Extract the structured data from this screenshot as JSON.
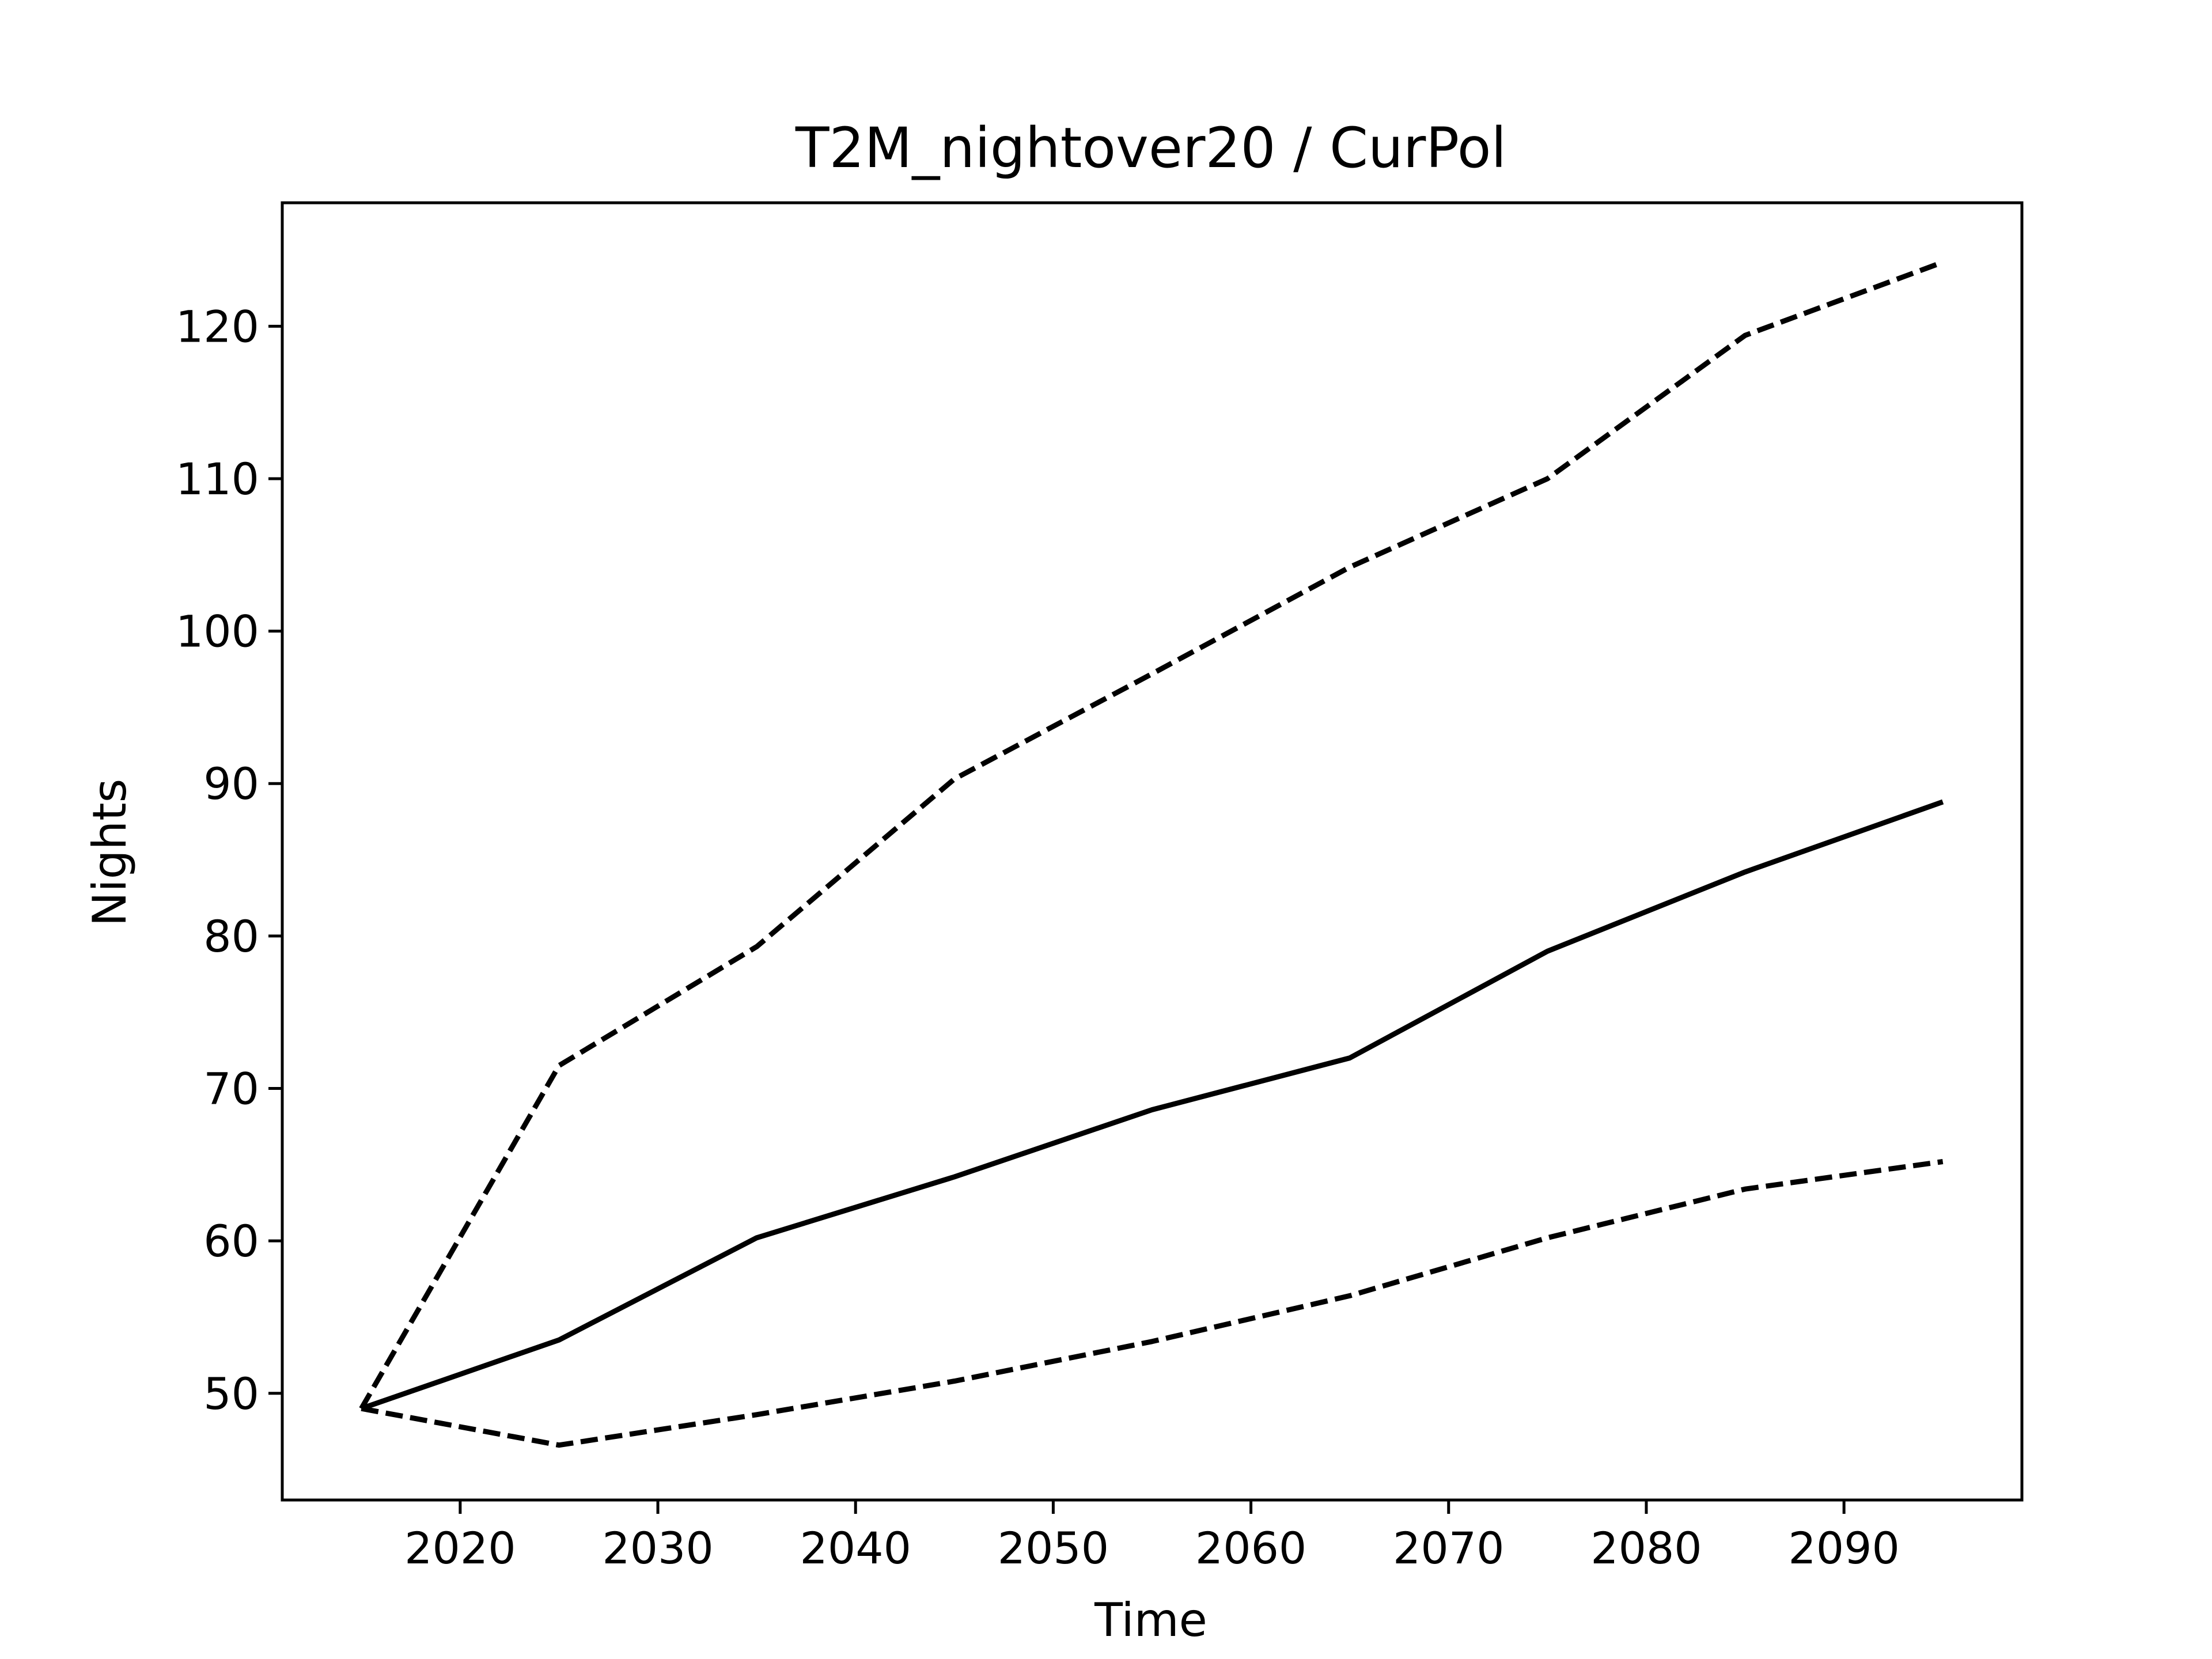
{
  "chart_data": {
    "type": "line",
    "title": "T2M_nightover20 / CurPol",
    "xlabel": "Time",
    "ylabel": "Nights",
    "x": [
      2015,
      2025,
      2035,
      2045,
      2055,
      2065,
      2075,
      2085,
      2095
    ],
    "series": [
      {
        "style": "solid",
        "values": [
          49.0,
          53.5,
          60.2,
          64.2,
          68.6,
          72.0,
          79.0,
          84.2,
          88.8
        ]
      },
      {
        "style": "dashed",
        "values": [
          49.0,
          71.5,
          79.3,
          90.3,
          97.2,
          104.2,
          110.0,
          119.4,
          124.2
        ]
      },
      {
        "style": "dashed",
        "values": [
          49.0,
          46.6,
          48.6,
          50.8,
          53.4,
          56.4,
          60.2,
          63.4,
          65.2
        ]
      }
    ],
    "xlim": [
      2011,
      2099
    ],
    "ylim": [
      43.0,
      128.1
    ],
    "xticks": [
      2020,
      2030,
      2040,
      2050,
      2060,
      2070,
      2080,
      2090
    ],
    "yticks": [
      50,
      60,
      70,
      80,
      90,
      100,
      110,
      120
    ],
    "grid": false,
    "line_color": "#000000"
  }
}
